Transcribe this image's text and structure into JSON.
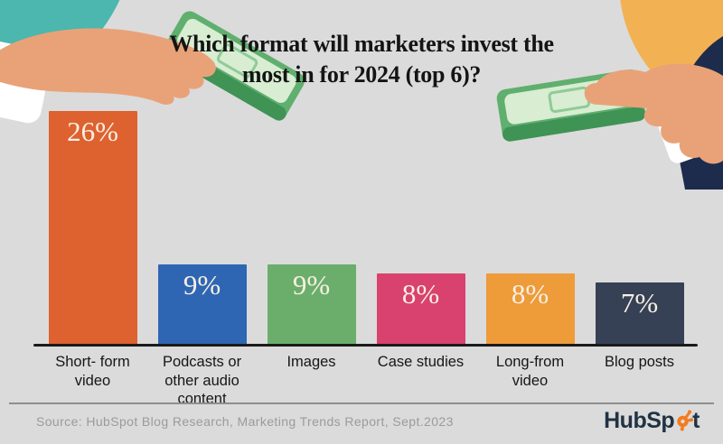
{
  "title": {
    "line1": "Which format will marketers invest the",
    "line2": "most in for 2024 (top 6)?"
  },
  "chart_data": {
    "type": "bar",
    "title": "Which format will marketers invest the most in for 2024 (top 6)?",
    "categories": [
      "Short- form video",
      "Podcasts or other audio content",
      "Images",
      "Case studies",
      "Long-from video",
      "Blog posts"
    ],
    "values": [
      26,
      9,
      9,
      8,
      8,
      7
    ],
    "value_labels": [
      "26%",
      "9%",
      "9%",
      "8%",
      "8%",
      "7%"
    ],
    "bar_colors": [
      "#DE6130",
      "#2F66B4",
      "#6BAE6C",
      "#D9416F",
      "#EE9B3A",
      "#364156"
    ],
    "xlabel": "",
    "ylabel": "",
    "ylim": [
      0,
      26
    ],
    "grid": false,
    "legend": null,
    "axis_line_color": "#1A1A1A",
    "value_label_position": "inside-top"
  },
  "footer": {
    "source": "Source: HubSpot Blog Research, Marketing Trends Report, Sept.2023",
    "logo": {
      "name": "HubSpot",
      "prefix": "HubSp",
      "suffix": "t",
      "sprocket_color": "#F47B20",
      "text_color": "#213343"
    }
  },
  "icons": {
    "left_illustration": "hand-giving-money",
    "right_illustration": "hand-receiving-money",
    "logo_mark": "hubspot-sprocket"
  },
  "colors": {
    "background": "#DBDBDB",
    "teal_circle": "#4BB7AE",
    "orange_circle": "#F2B254",
    "money_green": "#5FAF6E",
    "money_green_light": "#D8EDD2",
    "money_green_dark": "#3F9355",
    "skin": "#E9A278",
    "suit_navy": "#1D2B4D"
  }
}
